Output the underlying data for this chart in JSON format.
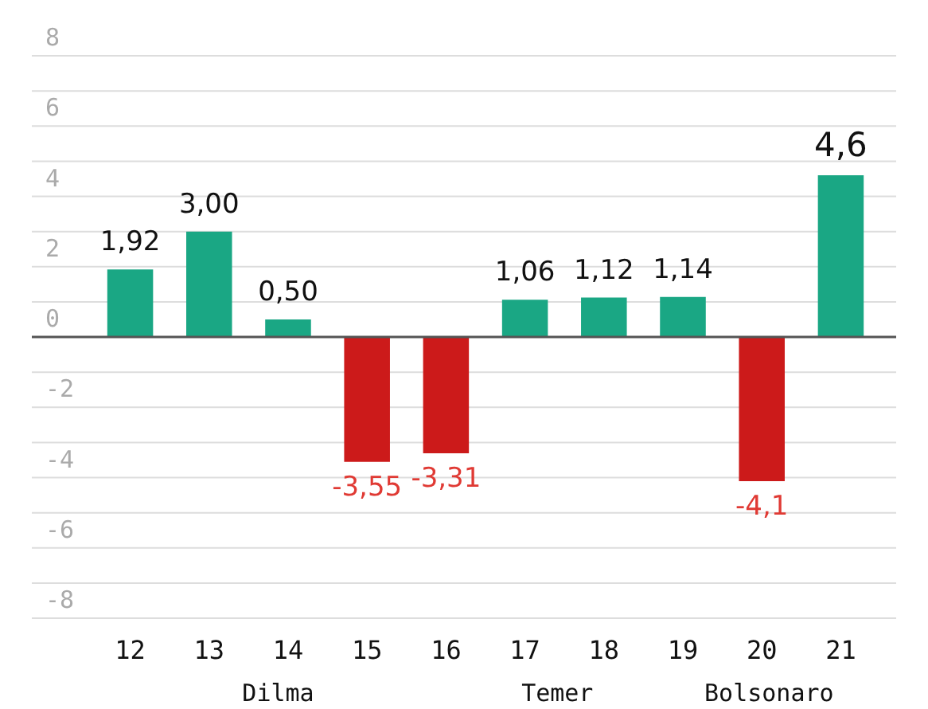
{
  "chart_data": {
    "type": "bar",
    "categories": [
      "12",
      "13",
      "14",
      "15",
      "16",
      "17",
      "18",
      "19",
      "20",
      "21"
    ],
    "values": [
      1.92,
      3.0,
      0.5,
      -3.55,
      -3.31,
      1.06,
      1.12,
      1.14,
      -4.1,
      4.6
    ],
    "colors": [
      "#1aa784",
      "#1aa784",
      "#1aa784",
      "#cc1a1a",
      "#cc1a1a",
      "#1aa784",
      "#1aa784",
      "#1aa784",
      "#cc1a1a",
      "#1aa784"
    ],
    "value_labels": [
      "1,92",
      "3,00",
      "0,50",
      "-3,55",
      "-3,31",
      "1,06",
      "1,12",
      "1,14",
      "-4,1",
      "4,6"
    ],
    "ylim": [
      -8,
      8
    ],
    "yticks": [
      {
        "value": -8,
        "label": "-8"
      },
      {
        "value": -7,
        "label": null
      },
      {
        "value": -6,
        "label": "-6"
      },
      {
        "value": -5,
        "label": null
      },
      {
        "value": -4,
        "label": "-4"
      },
      {
        "value": -3,
        "label": null
      },
      {
        "value": -2,
        "label": "-2"
      },
      {
        "value": -1,
        "label": null
      },
      0,
      {
        "value": 1,
        "label": null
      },
      2,
      {
        "value": 3,
        "label": null
      },
      4,
      {
        "value": 5,
        "label": null
      },
      6,
      {
        "value": 7,
        "label": null
      },
      8
    ],
    "grid": "y",
    "ref_lines": [
      {
        "axis": "y",
        "value": 0,
        "color": "#555555"
      }
    ],
    "annotations": [
      "Dilma",
      "Temer",
      "Bolsonaro"
    ]
  }
}
